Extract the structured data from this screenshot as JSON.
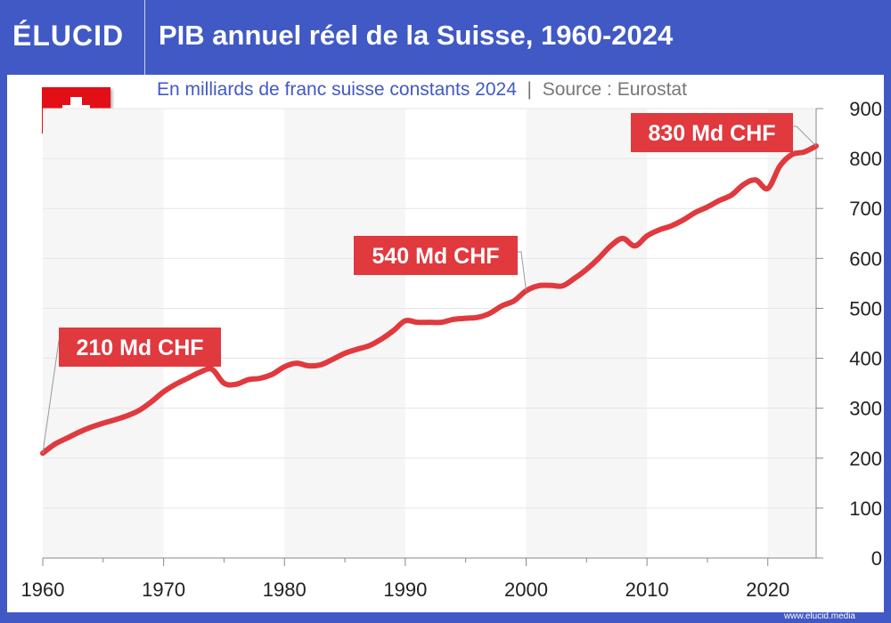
{
  "header": {
    "logo": "ÉLUCID",
    "title": "PIB annuel réel de la Suisse, 1960-2024"
  },
  "subtitle": "En milliards de franc suisse constants 2024",
  "source": "Source : Eurostat",
  "footer": "www.elucid.media",
  "colors": {
    "frame": "#4059c4",
    "line": "#e0393e",
    "flag": "#e30f17"
  },
  "chart_data": {
    "type": "line",
    "title": "PIB annuel réel de la Suisse, 1960-2024",
    "xlim": [
      1960,
      2024
    ],
    "ylim": [
      0,
      900
    ],
    "xticks": [
      1960,
      1970,
      1980,
      1990,
      2000,
      2010,
      2020
    ],
    "yticks": [
      0,
      100,
      200,
      300,
      400,
      500,
      600,
      700,
      800,
      900
    ],
    "grid": true,
    "x": [
      1960,
      1961,
      1962,
      1963,
      1964,
      1965,
      1966,
      1967,
      1968,
      1969,
      1970,
      1971,
      1972,
      1973,
      1974,
      1975,
      1976,
      1977,
      1978,
      1979,
      1980,
      1981,
      1982,
      1983,
      1984,
      1985,
      1986,
      1987,
      1988,
      1989,
      1990,
      1991,
      1992,
      1993,
      1994,
      1995,
      1996,
      1997,
      1998,
      1999,
      2000,
      2001,
      2002,
      2003,
      2004,
      2005,
      2006,
      2007,
      2008,
      2009,
      2010,
      2011,
      2012,
      2013,
      2014,
      2015,
      2016,
      2017,
      2018,
      2019,
      2020,
      2021,
      2022,
      2023,
      2024
    ],
    "y": [
      210,
      228,
      240,
      252,
      262,
      270,
      277,
      285,
      296,
      313,
      333,
      348,
      360,
      372,
      378,
      350,
      348,
      357,
      360,
      368,
      383,
      390,
      385,
      387,
      398,
      410,
      418,
      425,
      438,
      455,
      475,
      472,
      472,
      472,
      478,
      480,
      482,
      490,
      505,
      515,
      535,
      545,
      546,
      545,
      560,
      578,
      600,
      625,
      640,
      625,
      645,
      657,
      665,
      677,
      692,
      703,
      716,
      727,
      748,
      757,
      740,
      785,
      808,
      813,
      825
    ],
    "annotations": [
      {
        "year": 1960,
        "label": "210 Md CHF"
      },
      {
        "year": 2000,
        "label": "540 Md CHF"
      },
      {
        "year": 2024,
        "label": "830 Md CHF"
      }
    ]
  }
}
